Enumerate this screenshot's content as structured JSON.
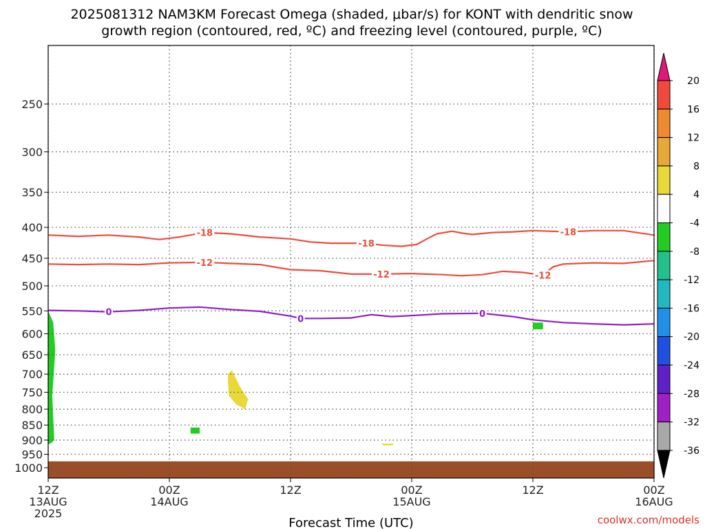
{
  "title": {
    "line1": "2025081312 NAM3KM Forecast Omega (shaded, μbar/s) for KONT with dendritic snow",
    "line2": "growth region (contoured, red, ºC) and freezing level (contoured, purple, ºC)"
  },
  "credit": "coolwx.com/models",
  "chart_data": {
    "type": "time-height cross section",
    "title": "2025081312 NAM3KM Forecast Omega (shaded, μbar/s) for KONT with dendritic snow growth region (contoured, red, ºC) and freezing level (contoured, purple, ºC)",
    "xlabel": "Forecast Time (UTC)",
    "ylabel": "",
    "x_hours_range": [
      0,
      60
    ],
    "y_pressure_range_hPa": [
      200,
      1040
    ],
    "y_scale": "log-pressure (reversed, 1000 at bottom)",
    "grid": true,
    "x_ticks": [
      {
        "hour": 0,
        "lines": [
          "12Z",
          "13AUG",
          "2025"
        ]
      },
      {
        "hour": 12,
        "lines": [
          "00Z",
          "14AUG"
        ]
      },
      {
        "hour": 24,
        "lines": [
          "12Z"
        ]
      },
      {
        "hour": 36,
        "lines": [
          "00Z",
          "15AUG"
        ]
      },
      {
        "hour": 48,
        "lines": [
          "12Z"
        ]
      },
      {
        "hour": 60,
        "lines": [
          "00Z",
          "16AUG"
        ]
      }
    ],
    "y_ticks": [
      250,
      300,
      350,
      400,
      450,
      500,
      550,
      600,
      650,
      700,
      750,
      800,
      850,
      900,
      950,
      1000
    ],
    "colorbar": {
      "labels": [
        "20",
        "16",
        "12",
        "8",
        "4",
        "-4",
        "-8",
        "-12",
        "-16",
        "-20",
        "-24",
        "-28",
        "-32",
        "-36"
      ],
      "top_arrow_color": "#e0187a",
      "bottom_arrow_color": "#000000",
      "segments": [
        {
          "range": "16 to 20",
          "color": "#f04a3a"
        },
        {
          "range": "12 to 16",
          "color": "#f08a30"
        },
        {
          "range": "8 to 12",
          "color": "#e8a838"
        },
        {
          "range": "4 to 8",
          "color": "#e8d838"
        },
        {
          "range": "-4 to 4",
          "color": "#ffffff"
        },
        {
          "range": "-8 to -4",
          "color": "#22cc22"
        },
        {
          "range": "-12 to -8",
          "color": "#22c08a"
        },
        {
          "range": "-16 to -12",
          "color": "#22b8c0"
        },
        {
          "range": "-20 to -16",
          "color": "#2090e8"
        },
        {
          "range": "-24 to -20",
          "color": "#2050e0"
        },
        {
          "range": "-28 to -24",
          "color": "#6020c8"
        },
        {
          "range": "-32 to -28",
          "color": "#a020c8"
        },
        {
          "range": "-36 to -32",
          "color": "#a8a8a8"
        }
      ]
    },
    "contours": [
      {
        "name": "-18",
        "color": "#f04a3a",
        "labels": [
          {
            "text": "-18",
            "hour": 15.5
          },
          {
            "text": "-18",
            "hour": 31.5
          },
          {
            "text": "-18",
            "hour": 51.5
          }
        ],
        "points": [
          [
            0,
            412
          ],
          [
            3,
            414
          ],
          [
            6,
            412
          ],
          [
            9,
            415
          ],
          [
            11,
            419
          ],
          [
            13,
            415
          ],
          [
            15.5,
            408
          ],
          [
            18,
            410
          ],
          [
            21,
            415
          ],
          [
            24,
            418
          ],
          [
            26,
            423
          ],
          [
            28,
            425
          ],
          [
            31.5,
            425
          ],
          [
            33,
            428
          ],
          [
            35,
            430
          ],
          [
            36.5,
            427
          ],
          [
            37.5,
            418
          ],
          [
            38.5,
            410
          ],
          [
            40,
            406
          ],
          [
            41,
            409
          ],
          [
            42,
            411
          ],
          [
            44,
            408
          ],
          [
            46,
            407
          ],
          [
            48,
            405
          ],
          [
            51.5,
            407
          ],
          [
            54,
            405
          ],
          [
            57,
            405
          ],
          [
            60,
            412
          ]
        ]
      },
      {
        "name": "-12",
        "color": "#f04a3a",
        "labels": [
          {
            "text": "-12",
            "hour": 15.5
          },
          {
            "text": "-12",
            "hour": 33
          },
          {
            "text": "-12",
            "hour": 49
          }
        ],
        "points": [
          [
            0,
            460
          ],
          [
            3,
            461
          ],
          [
            6,
            460
          ],
          [
            9,
            461
          ],
          [
            12,
            458
          ],
          [
            15.5,
            457
          ],
          [
            18,
            459
          ],
          [
            21,
            461
          ],
          [
            24,
            470
          ],
          [
            27,
            472
          ],
          [
            30,
            478
          ],
          [
            33,
            478
          ],
          [
            36,
            477
          ],
          [
            39,
            479
          ],
          [
            41,
            481
          ],
          [
            43,
            479
          ],
          [
            45,
            473
          ],
          [
            47,
            475
          ],
          [
            49,
            480
          ],
          [
            50,
            465
          ],
          [
            51,
            460
          ],
          [
            54,
            458
          ],
          [
            57,
            459
          ],
          [
            60,
            454
          ]
        ]
      },
      {
        "name": "0",
        "color": "#8c1cc8",
        "labels": [
          {
            "text": "0",
            "hour": 6
          },
          {
            "text": "0",
            "hour": 25
          },
          {
            "text": "0",
            "hour": 43
          }
        ],
        "points": [
          [
            0,
            549
          ],
          [
            3,
            550
          ],
          [
            6,
            552
          ],
          [
            9,
            549
          ],
          [
            12,
            544
          ],
          [
            15,
            542
          ],
          [
            18,
            547
          ],
          [
            21,
            551
          ],
          [
            24,
            561
          ],
          [
            25,
            566
          ],
          [
            27,
            566
          ],
          [
            30,
            565
          ],
          [
            32,
            558
          ],
          [
            34,
            562
          ],
          [
            36,
            560
          ],
          [
            39,
            556
          ],
          [
            43,
            555
          ],
          [
            46,
            562
          ],
          [
            48,
            569
          ],
          [
            51,
            575
          ],
          [
            54,
            578
          ],
          [
            57,
            580
          ],
          [
            60,
            578
          ]
        ]
      }
    ],
    "shaded_regions": [
      {
        "color": "#22cc22",
        "value_range": "-8 to -4",
        "outline": [
          [
            0,
            550
          ],
          [
            0.5,
            575
          ],
          [
            0.7,
            640
          ],
          [
            0.4,
            760
          ],
          [
            0.6,
            900
          ],
          [
            0.3,
            910
          ],
          [
            0,
            915
          ]
        ]
      },
      {
        "color": "#e8d838",
        "value_range": "4 to 8",
        "outline": [
          [
            17.8,
            700
          ],
          [
            18.2,
            690
          ],
          [
            19,
            735
          ],
          [
            19.8,
            770
          ],
          [
            19.5,
            800
          ],
          [
            18.6,
            785
          ],
          [
            17.9,
            760
          ],
          [
            17.8,
            720
          ]
        ]
      },
      {
        "color": "#22cc22",
        "value_range": "-8 to -4",
        "outline": [
          [
            14.1,
            858
          ],
          [
            15.0,
            858
          ],
          [
            15.0,
            878
          ],
          [
            14.1,
            878
          ]
        ]
      },
      {
        "color": "#e8d838",
        "value_range": "4 to 8",
        "outline": [
          [
            33,
            912
          ],
          [
            34.2,
            912
          ],
          [
            34.1,
            918
          ],
          [
            33.2,
            918
          ]
        ]
      },
      {
        "color": "#22cc22",
        "value_range": "-8 to -4",
        "outline": [
          [
            48,
            575
          ],
          [
            49,
            575
          ],
          [
            49,
            590
          ],
          [
            48,
            590
          ]
        ]
      },
      {
        "color": "#9b4e28",
        "value_range": "terrain",
        "outline": [
          [
            0,
            976
          ],
          [
            60,
            976
          ],
          [
            60,
            1040
          ],
          [
            0,
            1040
          ]
        ]
      }
    ]
  }
}
